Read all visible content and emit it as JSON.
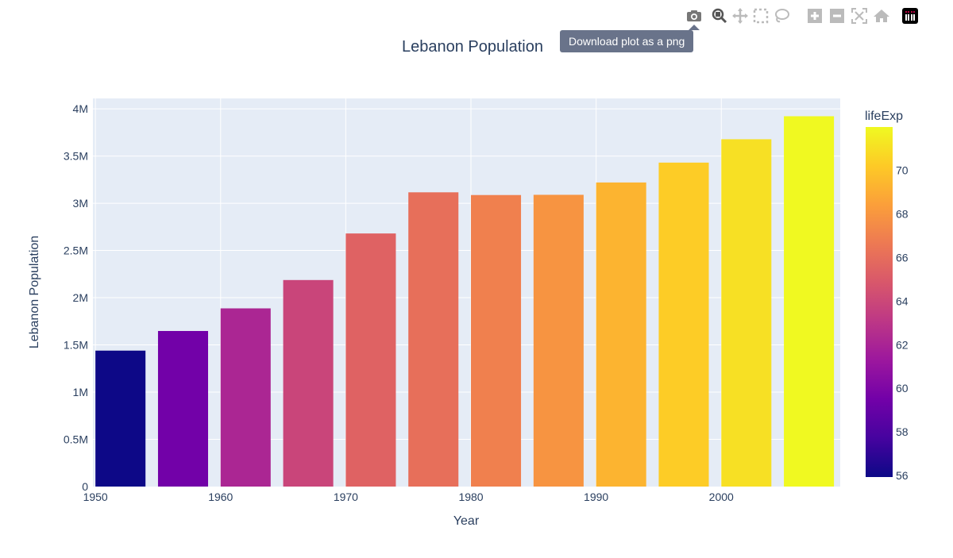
{
  "chart_data": {
    "type": "bar",
    "title": "Lebanon Population",
    "xlabel": "Year",
    "ylabel": "Lebanon Population",
    "x": [
      1952,
      1957,
      1962,
      1967,
      1972,
      1977,
      1982,
      1987,
      1992,
      1997,
      2002,
      2007
    ],
    "values": [
      1439529,
      1647412,
      1886848,
      2186894,
      2680018,
      3115787,
      3086876,
      3089353,
      3219994,
      3430388,
      3677780,
      3921278
    ],
    "color_values": [
      55.928,
      59.489,
      62.094,
      63.87,
      65.421,
      66.099,
      66.983,
      67.926,
      69.292,
      70.265,
      71.028,
      71.993
    ],
    "colorbar": {
      "title": "lifeExp",
      "ticks": [
        56,
        58,
        60,
        62,
        64,
        66,
        68,
        70
      ],
      "range": [
        55.928,
        71.993
      ],
      "colorscale": "Plasma"
    },
    "xticks": [
      1950,
      1960,
      1970,
      1980,
      1990,
      2000
    ],
    "yticks": [
      {
        "v": 0,
        "label": "0"
      },
      {
        "v": 500000,
        "label": "0.5M"
      },
      {
        "v": 1000000,
        "label": "1M"
      },
      {
        "v": 1500000,
        "label": "1.5M"
      },
      {
        "v": 2000000,
        "label": "2M"
      },
      {
        "v": 2500000,
        "label": "2.5M"
      },
      {
        "v": 3000000,
        "label": "3M"
      },
      {
        "v": 3500000,
        "label": "3.5M"
      },
      {
        "v": 4000000,
        "label": "4M"
      }
    ],
    "xlim": [
      1949.8,
      2009.5
    ],
    "ylim": [
      0,
      4110000
    ],
    "grid": true,
    "plot_bgcolor": "#e5ecf6"
  },
  "tooltip": "Download plot as a png",
  "modebar": [
    "camera-icon",
    "zoom-icon",
    "pan-icon",
    "box-select-icon",
    "lasso-select-icon",
    "zoom-in-icon",
    "zoom-out-icon",
    "autoscale-icon",
    "reset-axes-icon",
    "plotly-logo-icon"
  ]
}
